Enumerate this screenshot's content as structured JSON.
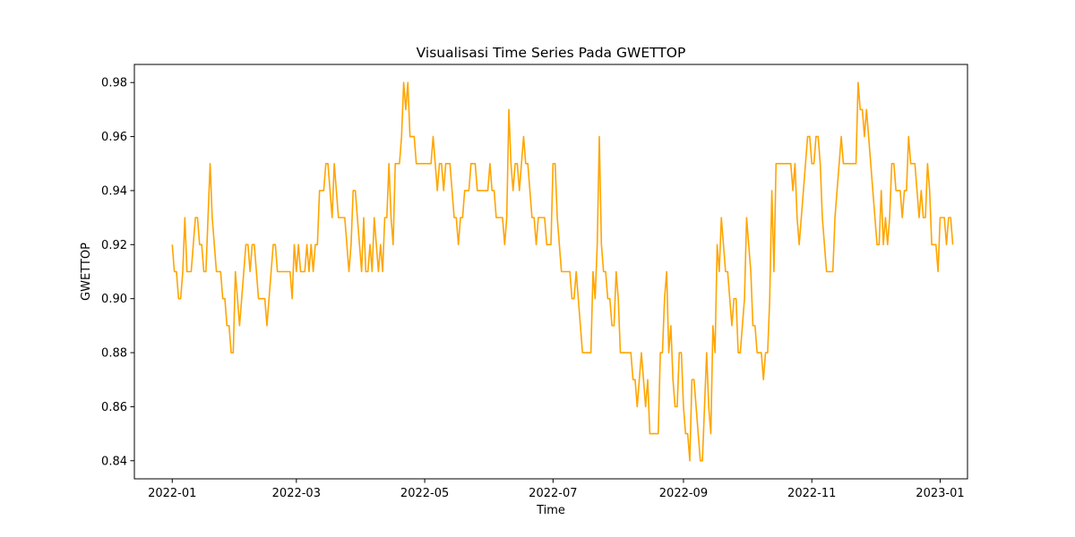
{
  "chart_data": {
    "type": "line",
    "title": "Visualisasi Time Series Pada GWETTOP",
    "xlabel": "Time",
    "ylabel": "GWETTOP",
    "x_start": "2022-01-01",
    "x_end": "2022-12-27",
    "xlim": [
      "2021-12-14",
      "2023-01-14"
    ],
    "ylim": [
      0.8333,
      0.9867
    ],
    "x_ticks": [
      "2022-01",
      "2022-03",
      "2022-05",
      "2022-07",
      "2022-09",
      "2022-11",
      "2023-01"
    ],
    "y_ticks": [
      "0.84",
      "0.86",
      "0.88",
      "0.90",
      "0.92",
      "0.94",
      "0.96",
      "0.98"
    ],
    "grid": false,
    "legend": "none",
    "series": [
      {
        "color": "#FFA500",
        "values": [
          0.92,
          0.91,
          0.91,
          0.9,
          0.9,
          0.91,
          0.93,
          0.91,
          0.91,
          0.91,
          0.92,
          0.93,
          0.93,
          0.92,
          0.92,
          0.91,
          0.91,
          0.93,
          0.95,
          0.93,
          0.92,
          0.91,
          0.91,
          0.91,
          0.9,
          0.9,
          0.89,
          0.89,
          0.88,
          0.88,
          0.91,
          0.9,
          0.89,
          0.9,
          0.91,
          0.92,
          0.92,
          0.91,
          0.92,
          0.92,
          0.91,
          0.9,
          0.9,
          0.9,
          0.9,
          0.89,
          0.9,
          0.91,
          0.92,
          0.92,
          0.91,
          0.91,
          0.91,
          0.91,
          0.91,
          0.91,
          0.91,
          0.9,
          0.92,
          0.91,
          0.92,
          0.91,
          0.91,
          0.91,
          0.92,
          0.91,
          0.92,
          0.91,
          0.92,
          0.92,
          0.94,
          0.94,
          0.94,
          0.95,
          0.95,
          0.94,
          0.93,
          0.95,
          0.94,
          0.93,
          0.93,
          0.93,
          0.93,
          0.92,
          0.91,
          0.92,
          0.94,
          0.94,
          0.93,
          0.92,
          0.91,
          0.93,
          0.91,
          0.91,
          0.92,
          0.91,
          0.93,
          0.92,
          0.91,
          0.92,
          0.91,
          0.93,
          0.93,
          0.95,
          0.93,
          0.92,
          0.95,
          0.95,
          0.95,
          0.96,
          0.98,
          0.97,
          0.98,
          0.96,
          0.96,
          0.96,
          0.95,
          0.95,
          0.95,
          0.95,
          0.95,
          0.95,
          0.95,
          0.95,
          0.96,
          0.95,
          0.94,
          0.95,
          0.95,
          0.94,
          0.95,
          0.95,
          0.95,
          0.94,
          0.93,
          0.93,
          0.92,
          0.93,
          0.93,
          0.94,
          0.94,
          0.94,
          0.95,
          0.95,
          0.95,
          0.94,
          0.94,
          0.94,
          0.94,
          0.94,
          0.94,
          0.95,
          0.94,
          0.94,
          0.93,
          0.93,
          0.93,
          0.93,
          0.92,
          0.93,
          0.97,
          0.95,
          0.94,
          0.95,
          0.95,
          0.94,
          0.95,
          0.96,
          0.95,
          0.95,
          0.94,
          0.93,
          0.93,
          0.92,
          0.93,
          0.93,
          0.93,
          0.93,
          0.92,
          0.92,
          0.92,
          0.95,
          0.95,
          0.93,
          0.92,
          0.91,
          0.91,
          0.91,
          0.91,
          0.91,
          0.9,
          0.9,
          0.91,
          0.9,
          0.89,
          0.88,
          0.88,
          0.88,
          0.88,
          0.88,
          0.91,
          0.9,
          0.92,
          0.96,
          0.92,
          0.91,
          0.91,
          0.9,
          0.9,
          0.89,
          0.89,
          0.91,
          0.9,
          0.88,
          0.88,
          0.88,
          0.88,
          0.88,
          0.88,
          0.87,
          0.87,
          0.86,
          0.87,
          0.88,
          0.87,
          0.86,
          0.87,
          0.85,
          0.85,
          0.85,
          0.85,
          0.85,
          0.88,
          0.88,
          0.9,
          0.91,
          0.88,
          0.89,
          0.87,
          0.86,
          0.86,
          0.88,
          0.88,
          0.86,
          0.85,
          0.85,
          0.84,
          0.87,
          0.87,
          0.86,
          0.85,
          0.84,
          0.84,
          0.86,
          0.88,
          0.86,
          0.85,
          0.89,
          0.88,
          0.92,
          0.91,
          0.93,
          0.92,
          0.91,
          0.91,
          0.9,
          0.89,
          0.9,
          0.9,
          0.88,
          0.88,
          0.89,
          0.9,
          0.93,
          0.92,
          0.91,
          0.89,
          0.89,
          0.88,
          0.88,
          0.88,
          0.87,
          0.88,
          0.88,
          0.9,
          0.94,
          0.91,
          0.95,
          0.95,
          0.95,
          0.95,
          0.95,
          0.95,
          0.95,
          0.95,
          0.94,
          0.95,
          0.93,
          0.92,
          0.93,
          0.94,
          0.95,
          0.96,
          0.96,
          0.95,
          0.95,
          0.96,
          0.96,
          0.95,
          0.93,
          0.92,
          0.91,
          0.91,
          0.91,
          0.91,
          0.93,
          0.94,
          0.95,
          0.96,
          0.95,
          0.95,
          0.95,
          0.95,
          0.95,
          0.95,
          0.95,
          0.98,
          0.97,
          0.97,
          0.96,
          0.97,
          0.96,
          0.95,
          0.94,
          0.93,
          0.92,
          0.92,
          0.94,
          0.92,
          0.93,
          0.92,
          0.93,
          0.95,
          0.95,
          0.94,
          0.94,
          0.94,
          0.93,
          0.94,
          0.94,
          0.96,
          0.95,
          0.95,
          0.95,
          0.94,
          0.93,
          0.94,
          0.93,
          0.93,
          0.95,
          0.94,
          0.92,
          0.92,
          0.92,
          0.91,
          0.93,
          0.93,
          0.93,
          0.92,
          0.93,
          0.93,
          0.92
        ]
      }
    ]
  }
}
